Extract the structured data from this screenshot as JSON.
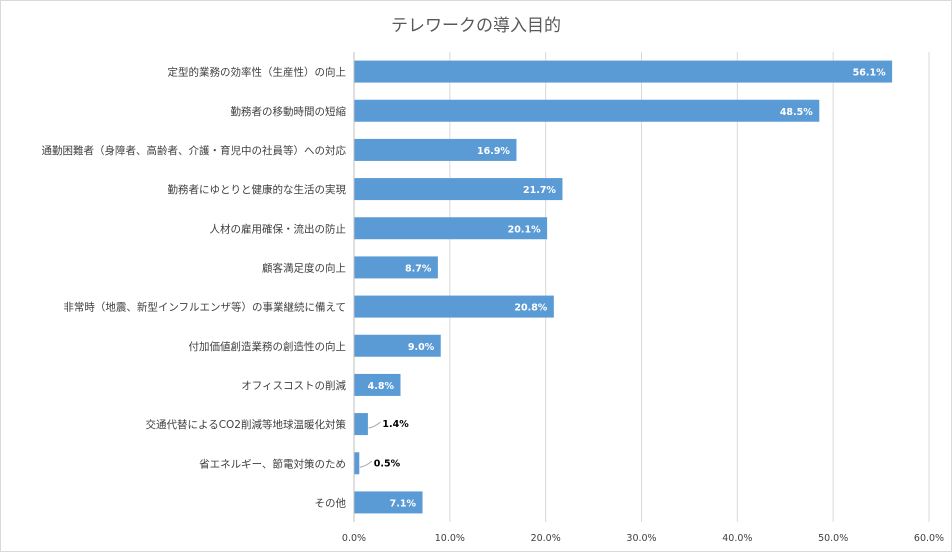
{
  "chart_data": {
    "type": "bar",
    "orientation": "horizontal",
    "title": "テレワークの導入目的",
    "categories": [
      "定型的業務の効率性（生産性）の向上",
      "勤務者の移動時間の短縮",
      "通勤困難者（身障者、高齢者、介護・育児中の社員等）への対応",
      "勤務者にゆとりと健康的な生活の実現",
      "人材の雇用確保・流出の防止",
      "顧客満足度の向上",
      "非常時（地震、新型インフルエンザ等）の事業継続に備えて",
      "付加価値創造業務の創造性の向上",
      "オフィスコストの削減",
      "交通代替によるCO2削減等地球温暖化対策",
      "省エネルギー、節電対策のため",
      "その他"
    ],
    "values": [
      56.1,
      48.5,
      16.9,
      21.7,
      20.1,
      8.7,
      20.8,
      9.0,
      4.8,
      1.4,
      0.5,
      7.1
    ],
    "data_labels": [
      "56.1%",
      "48.5%",
      "16.9%",
      "21.7%",
      "20.1%",
      "8.7%",
      "20.8%",
      "9.0%",
      "4.8%",
      "1.4%",
      "0.5%",
      "7.1%"
    ],
    "x_ticks": [
      "0.0%",
      "10.0%",
      "20.0%",
      "30.0%",
      "40.0%",
      "50.0%",
      "60.0%"
    ],
    "xlim": [
      0,
      60
    ],
    "grid": "vertical",
    "legend": "none",
    "bar_color": "#5b9bd5"
  }
}
